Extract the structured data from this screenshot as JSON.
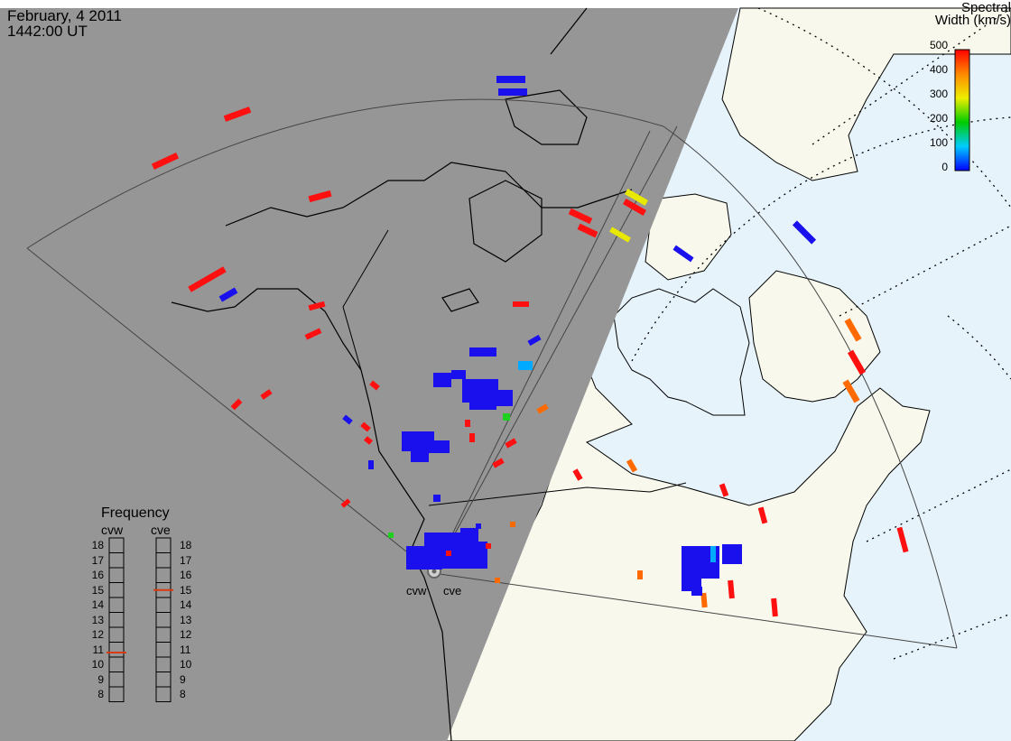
{
  "header": {
    "date": "February, 4 2011",
    "time": "1442:00 UT"
  },
  "colorbar": {
    "title_line1": "Spectral",
    "title_line2": "Width (km/s)",
    "ticks": [
      "500",
      "400",
      "300",
      "200",
      "100",
      "0"
    ],
    "min": 0,
    "max": 500
  },
  "radars": {
    "west": "cvw",
    "east": "cve"
  },
  "frequency": {
    "title": "Frequency",
    "col_west": "cvw",
    "col_east": "cve",
    "scale": [
      "18",
      "17",
      "16",
      "15",
      "14",
      "13",
      "12",
      "11",
      "10",
      "9",
      "8"
    ],
    "west_value_mhz": 10.8,
    "east_value_mhz": 15.0
  },
  "colors": {
    "night": "#969696",
    "land": "#f8f8ec",
    "ocean": "#e6f3fb",
    "marker": "#d83a10"
  }
}
